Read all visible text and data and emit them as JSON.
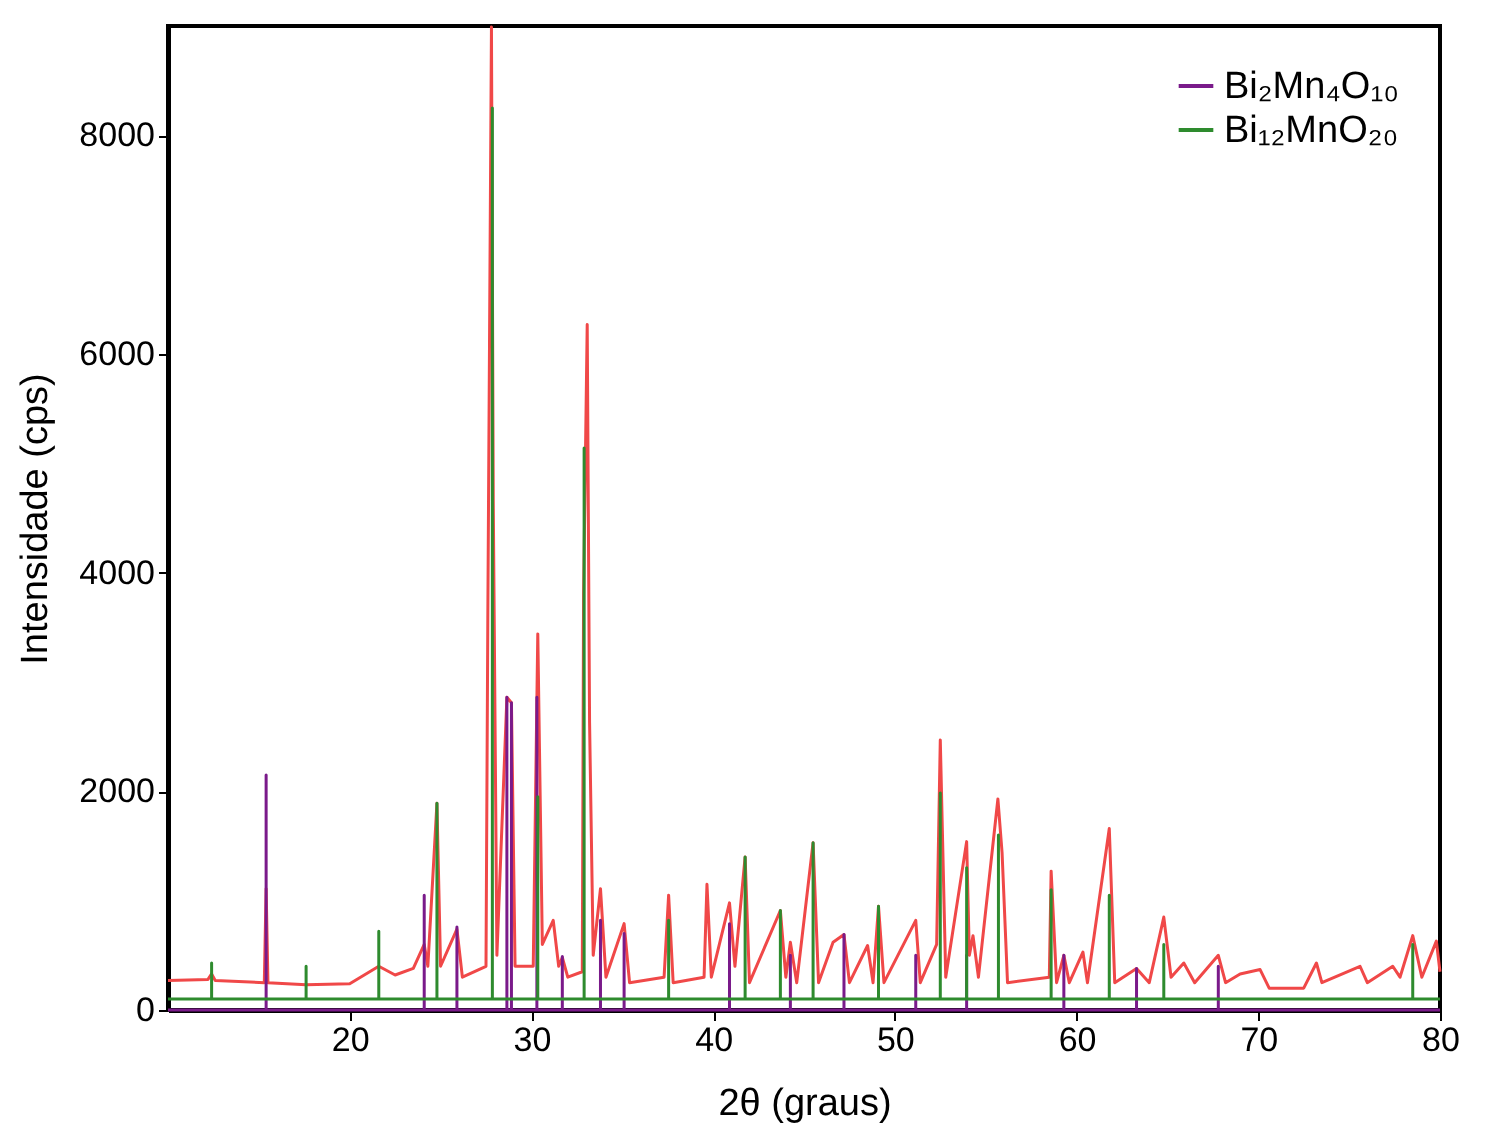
{
  "chart_data": {
    "type": "line",
    "xlabel": "2θ (graus)",
    "ylabel": "Intensidade (cps)",
    "xlim": [
      10,
      80
    ],
    "xticks": [
      20,
      30,
      40,
      50,
      60,
      70,
      80
    ],
    "ylim": [
      0,
      9000
    ],
    "yticks": [
      0,
      2000,
      4000,
      6000,
      8000
    ],
    "grid": false,
    "legend": "top right",
    "series": [
      {
        "color": "#f04848",
        "x": [
          10,
          12.2,
          12.4,
          12.6,
          15.3,
          15.4,
          15.5,
          17.6,
          20,
          21.6,
          22.5,
          23.5,
          24.1,
          24.3,
          24.8,
          25,
          25.9,
          26.2,
          27.5,
          27.6,
          27.8,
          27.9,
          28.1,
          28.65,
          28.9,
          29.1,
          30.1,
          30.35,
          30.6,
          31.2,
          31.5,
          31.7,
          32,
          32.8,
          32.87,
          33.07,
          33.2,
          33.4,
          33.8,
          34.1,
          35.1,
          35.4,
          37.3,
          37.55,
          37.8,
          39.5,
          39.66,
          39.9,
          40.9,
          41.2,
          41.76,
          42,
          43.7,
          44,
          44.25,
          44.6,
          45.5,
          45.8,
          46.6,
          47.2,
          47.5,
          48.5,
          48.8,
          49.1,
          49.4,
          51.15,
          51.4,
          52.3,
          52.5,
          52.8,
          53.95,
          54.1,
          54.3,
          54.6,
          55.67,
          55.9,
          56.2,
          58.5,
          58.6,
          58.9,
          59.3,
          59.6,
          60.35,
          60.6,
          61.8,
          62.1,
          63.3,
          64,
          64.8,
          65.2,
          65.9,
          66.5,
          67.8,
          68.2,
          69,
          70.1,
          70.6,
          72.5,
          73.2,
          73.5,
          75.6,
          76,
          77.4,
          77.8,
          78.5,
          79,
          79.8,
          80
        ],
        "values": [
          270,
          280,
          330,
          270,
          250,
          1110,
          250,
          230,
          240,
          400,
          320,
          380,
          600,
          400,
          1890,
          400,
          740,
          300,
          400,
          3580,
          8990,
          4650,
          500,
          2860,
          2810,
          400,
          400,
          3440,
          600,
          820,
          400,
          480,
          300,
          350,
          3800,
          6270,
          2630,
          500,
          1110,
          300,
          790,
          250,
          300,
          1050,
          250,
          300,
          1150,
          300,
          980,
          400,
          1400,
          250,
          910,
          300,
          620,
          250,
          1530,
          250,
          620,
          690,
          250,
          590,
          250,
          950,
          250,
          820,
          250,
          600,
          2470,
          300,
          1540,
          500,
          680,
          300,
          1930,
          1440,
          250,
          300,
          1270,
          250,
          500,
          250,
          530,
          250,
          1660,
          250,
          380,
          250,
          850,
          300,
          430,
          250,
          500,
          250,
          330,
          370,
          200,
          200,
          430,
          250,
          400,
          250,
          400,
          300,
          680,
          300,
          630,
          350
        ]
      },
      {
        "name": "Bi₂Mn₄O₁₀",
        "color": "#7a1a8a",
        "x": [
          10,
          15.4,
          15.4,
          15.4,
          24.1,
          24.1,
          24.1,
          25.9,
          25.9,
          25.9,
          28.65,
          28.65,
          28.65,
          28.9,
          28.9,
          28.9,
          30.3,
          30.3,
          30.3,
          31.7,
          31.7,
          31.7,
          33.8,
          33.8,
          33.8,
          35.1,
          35.1,
          35.1,
          40.9,
          40.9,
          40.9,
          44.25,
          44.25,
          44.25,
          47.2,
          47.2,
          47.2,
          51.15,
          51.15,
          51.15,
          53.95,
          53.95,
          53.95,
          59.3,
          59.3,
          59.3,
          63.3,
          63.3,
          63.3,
          67.8,
          67.8,
          67.8,
          80
        ],
        "values": [
          0,
          0,
          2150,
          0,
          0,
          1050,
          0,
          0,
          760,
          0,
          0,
          2860,
          0,
          0,
          2810,
          0,
          0,
          2860,
          0,
          0,
          490,
          0,
          0,
          820,
          0,
          0,
          700,
          0,
          0,
          790,
          0,
          0,
          500,
          0,
          0,
          690,
          0,
          0,
          500,
          0,
          0,
          500,
          0,
          0,
          500,
          0,
          0,
          380,
          0,
          0,
          400,
          0,
          0
        ]
      },
      {
        "name": "Bi₁₂MnO₂₀",
        "color": "#2e8b2e",
        "x": [
          10,
          12.4,
          12.4,
          12.4,
          17.6,
          17.6,
          17.6,
          21.6,
          21.6,
          21.6,
          24.8,
          24.8,
          24.8,
          27.85,
          27.85,
          27.85,
          30.35,
          30.35,
          30.35,
          32.9,
          32.9,
          32.9,
          37.55,
          37.55,
          37.55,
          41.76,
          41.76,
          41.76,
          43.7,
          43.7,
          43.7,
          45.5,
          45.5,
          45.5,
          49.1,
          49.1,
          49.1,
          52.5,
          52.5,
          52.5,
          53.95,
          53.95,
          53.95,
          55.7,
          55.7,
          55.7,
          58.6,
          58.6,
          58.6,
          61.8,
          61.8,
          61.8,
          64.8,
          64.8,
          64.8,
          78.5,
          78.5,
          78.5,
          80
        ],
        "values": [
          100,
          100,
          430,
          100,
          100,
          400,
          100,
          100,
          720,
          100,
          100,
          1890,
          100,
          100,
          8250,
          100,
          100,
          1950,
          100,
          100,
          5140,
          100,
          100,
          820,
          100,
          100,
          1400,
          100,
          100,
          910,
          100,
          100,
          1530,
          100,
          100,
          950,
          100,
          100,
          1985,
          100,
          100,
          1300,
          100,
          100,
          1600,
          100,
          100,
          1100,
          100,
          100,
          1050,
          100,
          100,
          600,
          100,
          100,
          600,
          100,
          100
        ]
      }
    ]
  }
}
